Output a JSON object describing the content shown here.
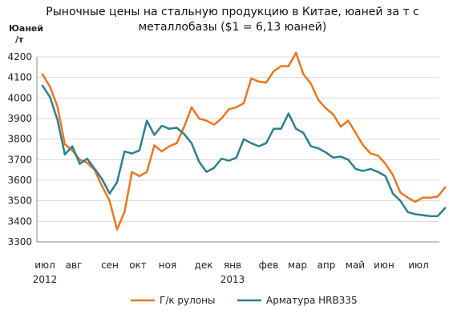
{
  "chart_data": {
    "type": "line",
    "title_lines": [
      "Рыночные цены на стальную продукцию в Китае, юаней за т с",
      "металлобазы ($1 = 6,13 юаней)"
    ],
    "y_unit_lines": [
      "Юаней",
      "/т"
    ],
    "ylim": [
      3300,
      4200
    ],
    "y_ticks": [
      3300,
      3400,
      3500,
      3600,
      3700,
      3800,
      3900,
      4000,
      4100,
      4200
    ],
    "x_tick_labels": [
      "июл",
      "авг",
      "сен",
      "окт",
      "ноя",
      "дек",
      "янв",
      "фев",
      "мар",
      "апр",
      "май",
      "июн",
      "июл"
    ],
    "x_year_labels": [
      {
        "label": "2012",
        "month_index": 0
      },
      {
        "label": "2013",
        "month_index": 6
      }
    ],
    "grid": "horizontal",
    "legend_position": "bottom",
    "x_unit": "month",
    "series": [
      {
        "name": "Г/к рулоны",
        "color": "#E87722",
        "points": [
          [
            0.0,
            4115
          ],
          [
            0.25,
            4055
          ],
          [
            0.5,
            3960
          ],
          [
            0.75,
            3775
          ],
          [
            1.0,
            3745
          ],
          [
            1.25,
            3700
          ],
          [
            1.5,
            3685
          ],
          [
            1.75,
            3650
          ],
          [
            2.0,
            3570
          ],
          [
            2.25,
            3500
          ],
          [
            2.5,
            3360
          ],
          [
            2.75,
            3445
          ],
          [
            3.0,
            3640
          ],
          [
            3.25,
            3620
          ],
          [
            3.5,
            3640
          ],
          [
            3.75,
            3770
          ],
          [
            4.0,
            3740
          ],
          [
            4.25,
            3765
          ],
          [
            4.5,
            3780
          ],
          [
            4.75,
            3860
          ],
          [
            5.0,
            3955
          ],
          [
            5.25,
            3900
          ],
          [
            5.5,
            3890
          ],
          [
            5.75,
            3870
          ],
          [
            6.0,
            3900
          ],
          [
            6.25,
            3945
          ],
          [
            6.5,
            3955
          ],
          [
            6.75,
            3975
          ],
          [
            7.0,
            4095
          ],
          [
            7.25,
            4080
          ],
          [
            7.5,
            4075
          ],
          [
            7.75,
            4130
          ],
          [
            8.0,
            4155
          ],
          [
            8.25,
            4155
          ],
          [
            8.5,
            4220
          ],
          [
            8.75,
            4115
          ],
          [
            9.0,
            4070
          ],
          [
            9.25,
            3990
          ],
          [
            9.5,
            3950
          ],
          [
            9.75,
            3920
          ],
          [
            10.0,
            3860
          ],
          [
            10.25,
            3890
          ],
          [
            10.5,
            3830
          ],
          [
            10.75,
            3770
          ],
          [
            11.0,
            3730
          ],
          [
            11.25,
            3720
          ],
          [
            11.5,
            3680
          ],
          [
            11.75,
            3625
          ],
          [
            12.0,
            3540
          ],
          [
            12.25,
            3515
          ],
          [
            12.5,
            3495
          ],
          [
            12.75,
            3515
          ],
          [
            13.0,
            3515
          ],
          [
            13.25,
            3520
          ],
          [
            13.5,
            3565
          ]
        ]
      },
      {
        "name": "Арматура HRB335",
        "color": "#2E7F8C",
        "points": [
          [
            0.0,
            4060
          ],
          [
            0.25,
            4005
          ],
          [
            0.5,
            3895
          ],
          [
            0.75,
            3725
          ],
          [
            1.0,
            3765
          ],
          [
            1.25,
            3680
          ],
          [
            1.5,
            3705
          ],
          [
            1.75,
            3655
          ],
          [
            2.0,
            3605
          ],
          [
            2.25,
            3535
          ],
          [
            2.5,
            3590
          ],
          [
            2.75,
            3740
          ],
          [
            3.0,
            3730
          ],
          [
            3.25,
            3745
          ],
          [
            3.5,
            3890
          ],
          [
            3.75,
            3820
          ],
          [
            4.0,
            3865
          ],
          [
            4.25,
            3850
          ],
          [
            4.5,
            3855
          ],
          [
            4.75,
            3825
          ],
          [
            5.0,
            3780
          ],
          [
            5.25,
            3690
          ],
          [
            5.5,
            3640
          ],
          [
            5.75,
            3660
          ],
          [
            6.0,
            3705
          ],
          [
            6.25,
            3695
          ],
          [
            6.5,
            3710
          ],
          [
            6.75,
            3800
          ],
          [
            7.0,
            3780
          ],
          [
            7.25,
            3765
          ],
          [
            7.5,
            3780
          ],
          [
            7.75,
            3850
          ],
          [
            8.0,
            3850
          ],
          [
            8.25,
            3925
          ],
          [
            8.5,
            3850
          ],
          [
            8.75,
            3830
          ],
          [
            9.0,
            3765
          ],
          [
            9.25,
            3755
          ],
          [
            9.5,
            3735
          ],
          [
            9.75,
            3710
          ],
          [
            10.0,
            3715
          ],
          [
            10.25,
            3700
          ],
          [
            10.5,
            3655
          ],
          [
            10.75,
            3645
          ],
          [
            11.0,
            3655
          ],
          [
            11.25,
            3640
          ],
          [
            11.5,
            3620
          ],
          [
            11.75,
            3535
          ],
          [
            12.0,
            3500
          ],
          [
            12.25,
            3445
          ],
          [
            12.5,
            3435
          ],
          [
            12.75,
            3430
          ],
          [
            13.0,
            3425
          ],
          [
            13.25,
            3425
          ],
          [
            13.5,
            3465
          ]
        ]
      }
    ]
  }
}
